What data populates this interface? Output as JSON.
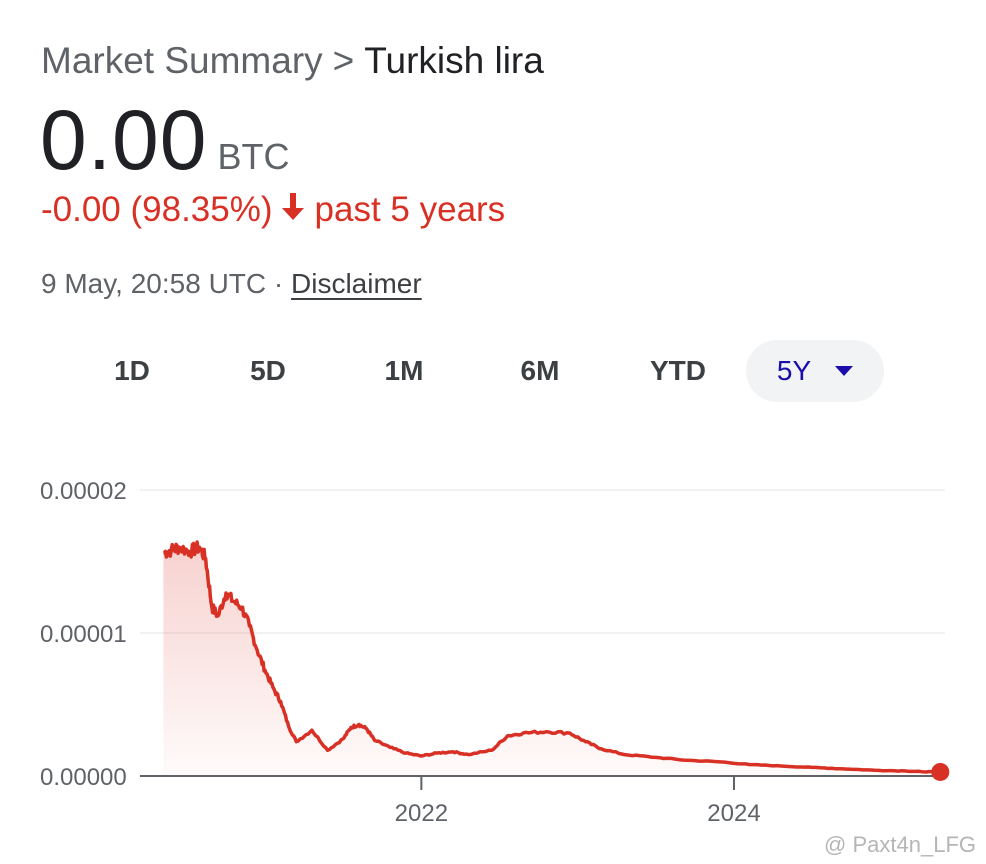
{
  "header": {
    "breadcrumb_root": "Market Summary",
    "breadcrumb_separator": ">",
    "breadcrumb_current": "Turkish lira",
    "price": "0.00",
    "currency": "BTC",
    "change": "-0.00 (98.35%)",
    "change_period": "past 5 years",
    "timestamp": "9 May, 20:58 UTC ·",
    "disclaimer": "Disclaimer"
  },
  "range_tabs": [
    "1D",
    "5D",
    "1M",
    "6M",
    "YTD",
    "5Y"
  ],
  "active_range": "5Y",
  "watermark": "@ Paxt4n_LFG",
  "colors": {
    "line": "#d93025",
    "accent": "#1a0dab"
  },
  "chart_data": {
    "type": "area",
    "title": "",
    "xlabel": "",
    "ylabel": "",
    "yticks": [
      "0.00002",
      "0.00001",
      "0.00000"
    ],
    "xticks": [
      {
        "label": "2022",
        "x": 2022.0
      },
      {
        "label": "2024",
        "x": 2024.0
      }
    ],
    "xlim": [
      2020.2,
      2025.35
    ],
    "ylim": [
      0,
      2e-05
    ],
    "grid": true,
    "series": [
      {
        "x": [
          2020.35,
          2020.4,
          2020.45,
          2020.52,
          2020.58,
          2020.62,
          2020.66,
          2020.7,
          2020.75,
          2020.8,
          2020.85,
          2020.9,
          2020.95,
          2021.0,
          2021.05,
          2021.1,
          2021.15,
          2021.2,
          2021.3,
          2021.4,
          2021.5,
          2021.55,
          2021.6,
          2021.65,
          2021.7,
          2021.8,
          2021.9,
          2022.0,
          2022.1,
          2022.2,
          2022.3,
          2022.45,
          2022.55,
          2022.65,
          2022.8,
          2022.95,
          2023.05,
          2023.15,
          2023.3,
          2023.5,
          2023.7,
          2023.9,
          2024.1,
          2024.3,
          2024.5,
          2024.7,
          2024.9,
          2025.1,
          2025.2,
          2025.32
        ],
        "y": [
          1.56e-05,
          1.58e-05,
          1.6e-05,
          1.57e-05,
          1.6e-05,
          1.52e-05,
          1.18e-05,
          1.12e-05,
          1.28e-05,
          1.22e-05,
          1.18e-05,
          1.05e-05,
          8.8e-06,
          7.4e-06,
          6.2e-06,
          5.2e-06,
          3.5e-06,
          2.4e-06,
          3.2e-06,
          1.8e-06,
          2.6e-06,
          3.4e-06,
          3.6e-06,
          3.3e-06,
          2.5e-06,
          2e-06,
          1.6e-06,
          1.4e-06,
          1.6e-06,
          1.7e-06,
          1.5e-06,
          1.8e-06,
          2.8e-06,
          3e-06,
          3.1e-06,
          3e-06,
          2.4e-06,
          1.9e-06,
          1.5e-06,
          1.3e-06,
          1.1e-06,
          1e-06,
          8e-07,
          7e-07,
          6e-07,
          5e-07,
          4e-07,
          3.5e-07,
          3e-07,
          2.8e-07
        ]
      }
    ]
  }
}
